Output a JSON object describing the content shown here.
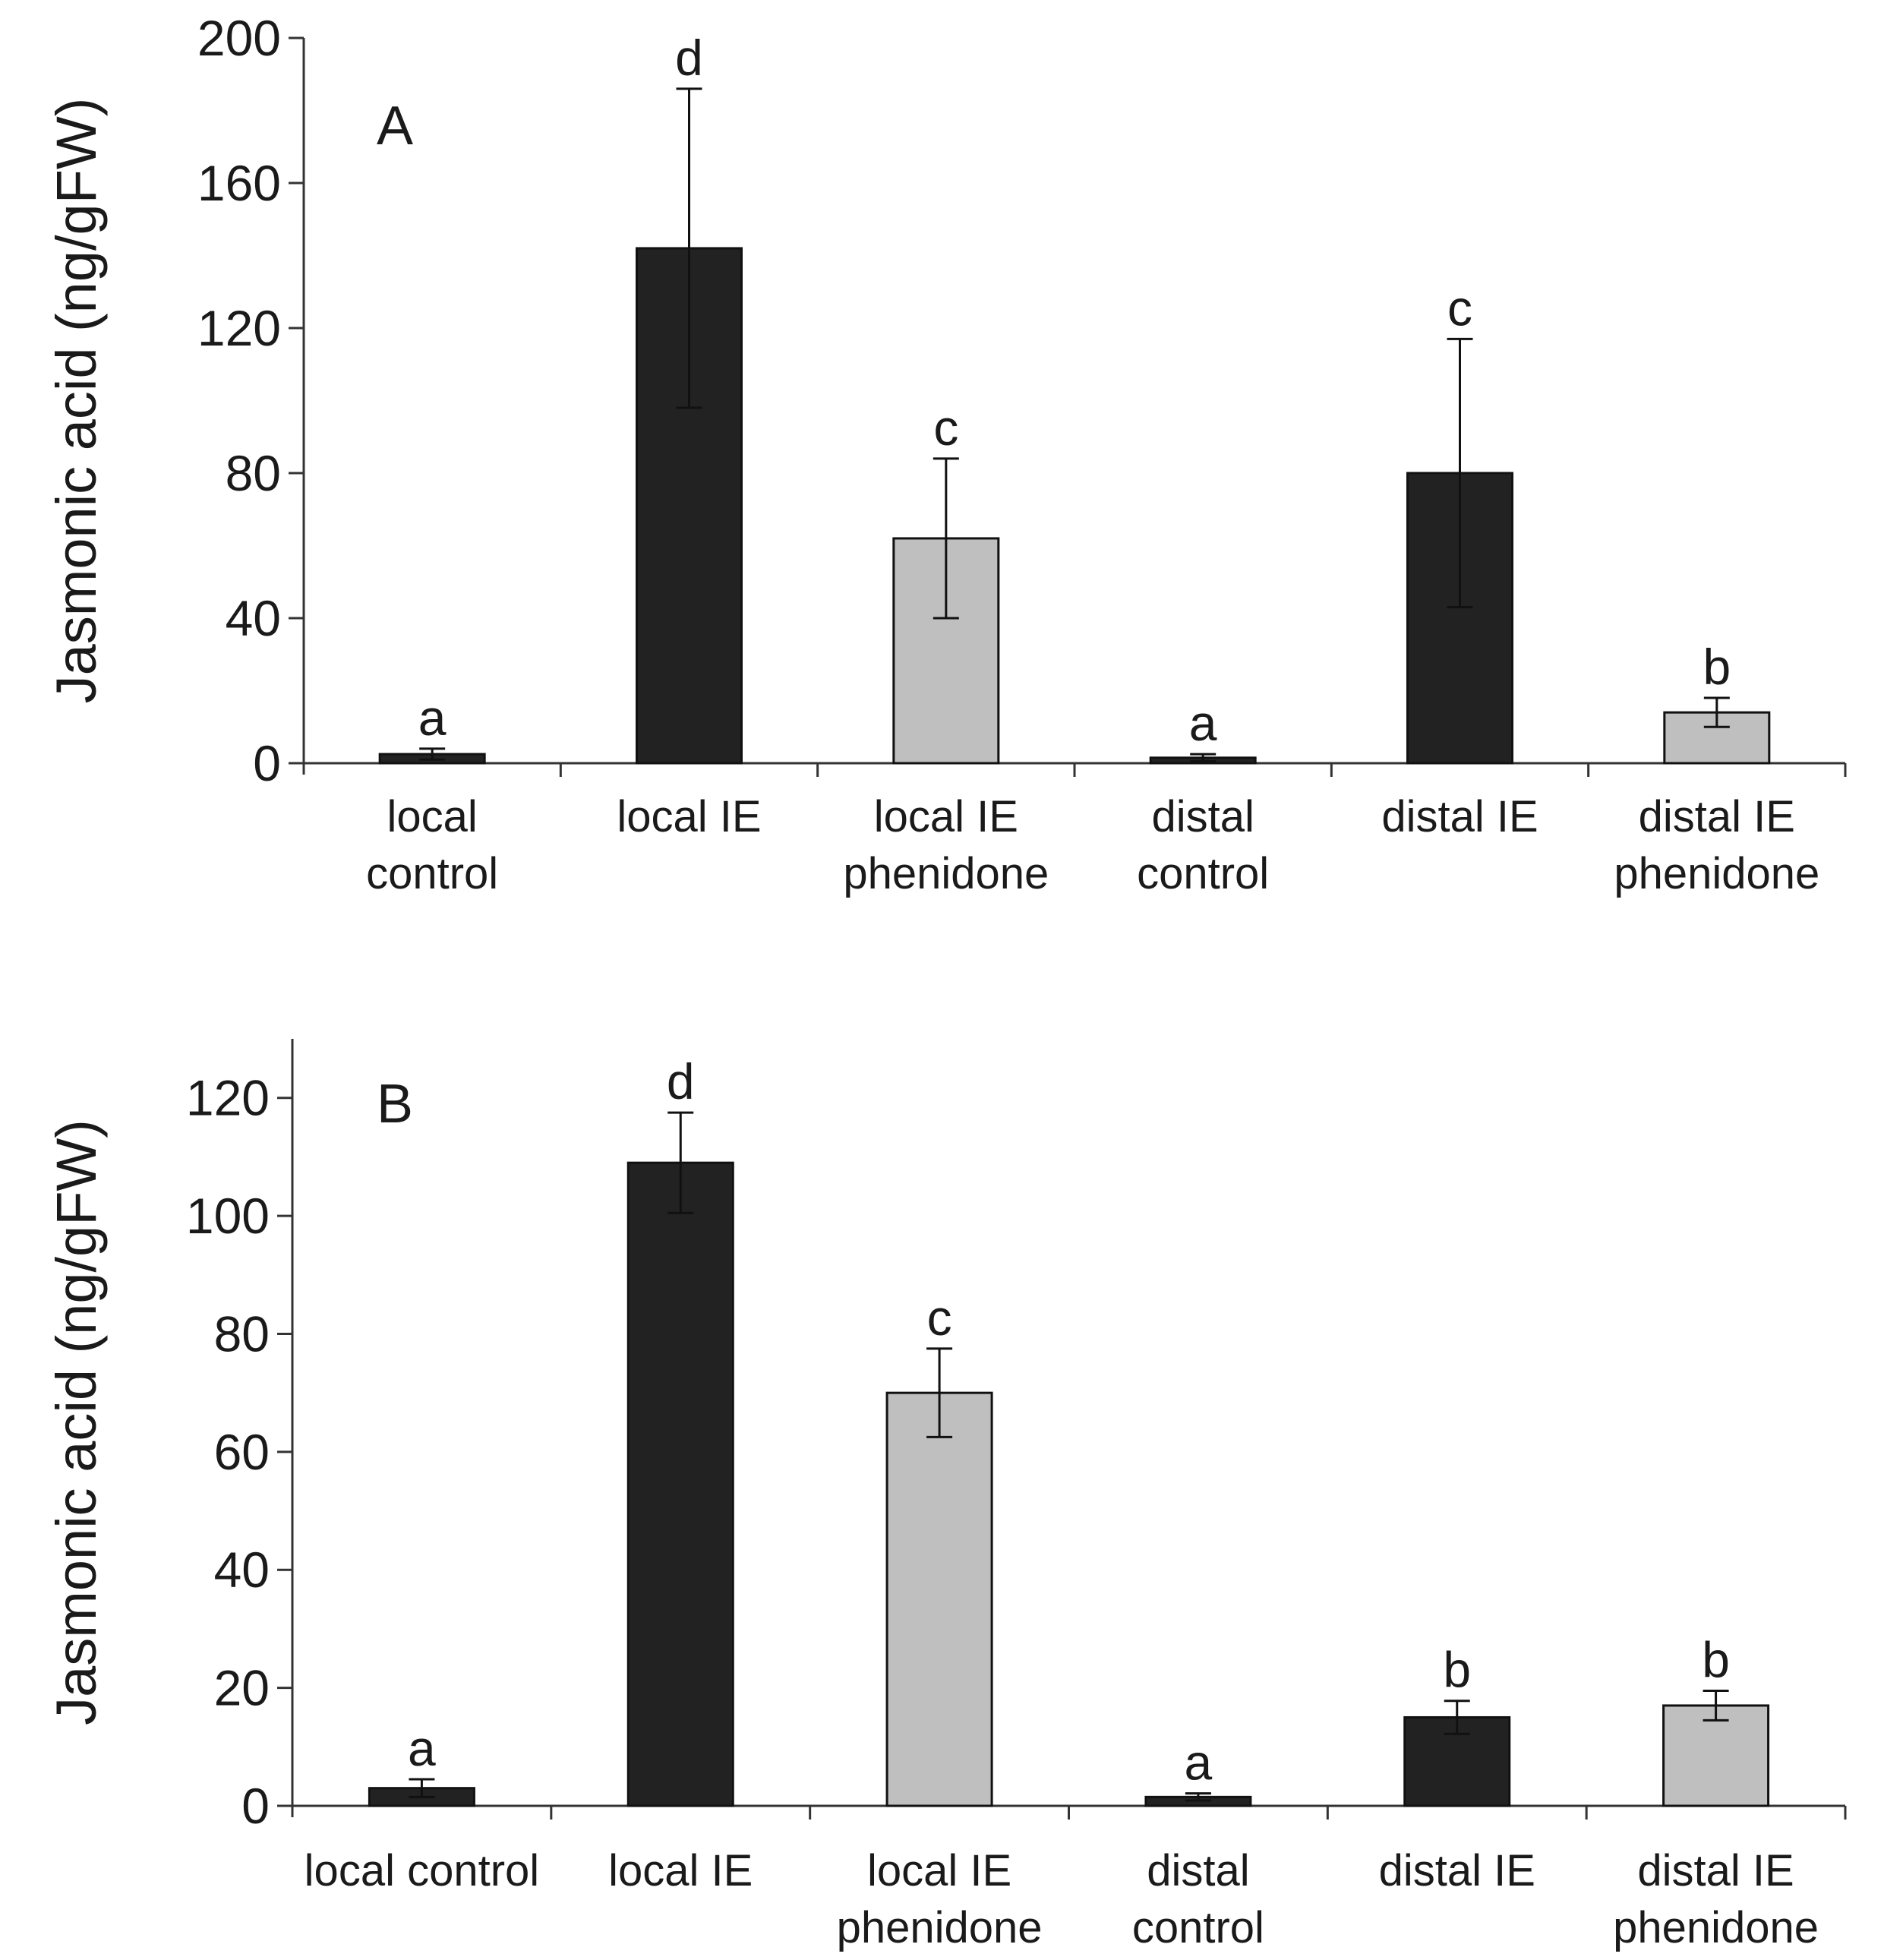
{
  "chart_data": [
    {
      "type": "bar",
      "panel_label": "A",
      "ylabel": "Jasmonic acid (ng/gFW)",
      "xlabel": "",
      "ylim": [
        0,
        200
      ],
      "yticks": [
        "0",
        "40",
        "80",
        "120",
        "160",
        "200"
      ],
      "grid": false,
      "categories": [
        [
          "local",
          "control"
        ],
        [
          "local IE"
        ],
        [
          "local IE",
          "phenidone"
        ],
        [
          "distal",
          "control"
        ],
        [
          "distal IE"
        ],
        [
          "distal IE",
          "phenidone"
        ]
      ],
      "values": [
        2.5,
        142,
        62,
        1.5,
        80,
        14
      ],
      "errors": [
        1.5,
        44,
        22,
        1,
        37,
        4
      ],
      "significance": [
        "a",
        "d",
        "c",
        "a",
        "c",
        "b"
      ],
      "colors": [
        "#222222",
        "#222222",
        "#bfbfbf",
        "#222222",
        "#222222",
        "#bfbfbf"
      ]
    },
    {
      "type": "bar",
      "panel_label": "B",
      "ylabel": "Jasmonic acid (ng/gFW)",
      "xlabel": "",
      "ylim": [
        0,
        130
      ],
      "yticks": [
        "0",
        "20",
        "40",
        "60",
        "80",
        "100",
        "120"
      ],
      "grid": false,
      "categories": [
        [
          "local control"
        ],
        [
          "local IE"
        ],
        [
          "local IE",
          "phenidone"
        ],
        [
          "distal",
          "control"
        ],
        [
          "distal IE"
        ],
        [
          "distal IE",
          "phenidone"
        ]
      ],
      "values": [
        3,
        109,
        70,
        1.5,
        15,
        17
      ],
      "errors": [
        1.5,
        8.5,
        7.5,
        0.6,
        2.8,
        2.5
      ],
      "significance": [
        "a",
        "d",
        "c",
        "a",
        "b",
        "b"
      ],
      "colors": [
        "#222222",
        "#222222",
        "#bfbfbf",
        "#222222",
        "#222222",
        "#bfbfbf"
      ]
    }
  ]
}
